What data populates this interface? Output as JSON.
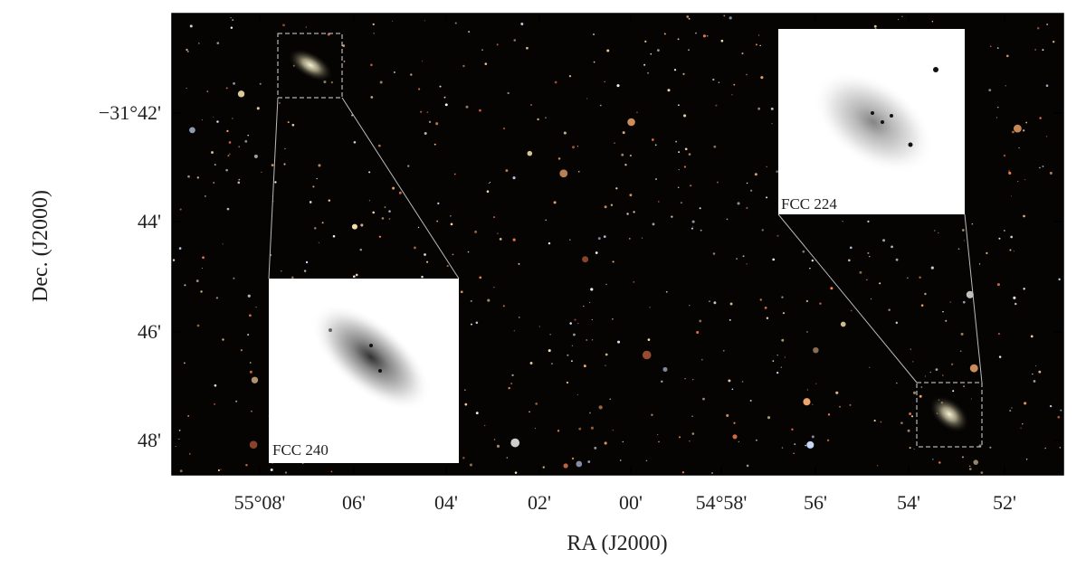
{
  "axes": {
    "x_label": "RA (J2000)",
    "y_label": "Dec. (J2000)",
    "x_ticks": [
      "55°08'",
      "06'",
      "04'",
      "02'",
      "00'",
      "54°58'",
      "56'",
      "54'",
      "52'"
    ],
    "y_ticks": [
      "−31°42'",
      "44'",
      "46'",
      "48'"
    ]
  },
  "insets": [
    {
      "label": "FCC 240"
    },
    {
      "label": "FCC 224"
    }
  ]
}
